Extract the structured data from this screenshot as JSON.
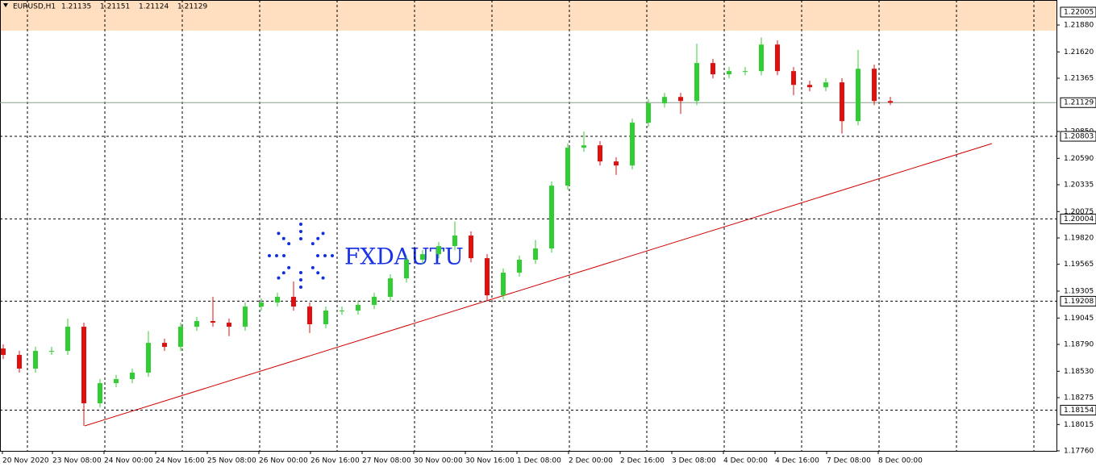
{
  "header": {
    "symbol": "EURUSD,H1",
    "quote": [
      "1.21135",
      "1.21151",
      "1.21124",
      "1.21129"
    ]
  },
  "watermark": "FXDAUTU",
  "chart_data": {
    "type": "candlestick",
    "bull_color": "#32cd32",
    "bear_color": "#e01010",
    "ylim": [
      1.17752,
      1.22122
    ],
    "yticks": [
      {
        "value": 1.2188,
        "label": "1.21880"
      },
      {
        "value": 1.2162,
        "label": "1.21620"
      },
      1.21365,
      {
        "value": 1.2085,
        "label": "1.20850"
      },
      {
        "value": 1.2059,
        "label": "1.20590"
      },
      1.20335,
      1.20075,
      {
        "value": 1.1982,
        "label": "1.19820"
      },
      1.19565,
      1.19305,
      1.19045,
      {
        "value": 1.1879,
        "label": "1.18790"
      },
      {
        "value": 1.1853,
        "label": "1.18530"
      },
      1.18275,
      1.18015,
      {
        "value": 1.1776,
        "label": "1.17760"
      }
    ],
    "levels": [
      1.22005,
      1.20803,
      1.20004,
      1.19208,
      1.18154
    ],
    "bid": 1.21129,
    "xlabels": [
      "20 Nov 2020",
      "23 Nov 08:00",
      "24 Nov 00:00",
      "24 Nov 16:00",
      "25 Nov 08:00",
      "26 Nov 00:00",
      "26 Nov 16:00",
      "27 Nov 08:00",
      "30 Nov 00:00",
      "30 Nov 16:00",
      "1 Dec 08:00",
      "2 Dec 00:00",
      "2 Dec 16:00",
      "3 Dec 08:00",
      "4 Dec 00:00",
      "4 Dec 16:00",
      "7 Dec 08:00",
      "8 Dec 00:00"
    ],
    "open": [
      1.1875,
      1.18688,
      1.18556,
      1.18727,
      1.18727,
      1.18961,
      1.1822,
      1.18415,
      1.18454,
      1.18517,
      1.18805,
      1.18766,
      1.18961,
      1.19016,
      1.19,
      1.18961,
      1.19156,
      1.19195,
      1.1925,
      1.19156,
      1.18985,
      1.19117,
      1.19117,
      1.19172,
      1.1925,
      1.19429,
      1.19609,
      1.19663,
      1.19741,
      1.19843,
      1.19624,
      1.19265,
      1.19484,
      1.19609,
      1.19718,
      1.20326,
      1.20693,
      1.20716,
      1.2056,
      1.20521,
      1.20935,
      1.21122,
      1.21184,
      1.21145,
      1.21512,
      1.21403,
      1.21434,
      1.21434,
      1.21691,
      1.21434,
      1.21301,
      1.21278,
      1.21325,
      1.2095,
      1.21457,
      1.21145
    ],
    "high": [
      1.1879,
      1.18728,
      1.18767,
      1.18767,
      1.1904,
      1.19001,
      1.18455,
      1.18494,
      1.18557,
      1.1892,
      1.18845,
      1.19001,
      1.19056,
      1.1925,
      1.1904,
      1.19196,
      1.19235,
      1.1929,
      1.194,
      1.19196,
      1.19157,
      1.19157,
      1.19212,
      1.1929,
      1.19469,
      1.19649,
      1.19703,
      1.19781,
      1.1998,
      1.19883,
      1.19664,
      1.19524,
      1.19649,
      1.198,
      1.20366,
      1.20733,
      1.2085,
      1.20756,
      1.206,
      1.20975,
      1.21162,
      1.21224,
      1.21224,
      1.217,
      1.21552,
      1.21474,
      1.21474,
      1.2176,
      1.21731,
      1.21474,
      1.21341,
      1.21365,
      1.21365,
      1.2164,
      1.21497,
      1.21185
    ],
    "low": [
      1.18648,
      1.18516,
      1.18516,
      1.18687,
      1.18687,
      1.18002,
      1.1818,
      1.18375,
      1.18414,
      1.18477,
      1.18726,
      1.18726,
      1.18921,
      1.1896,
      1.1887,
      1.18921,
      1.19116,
      1.19155,
      1.19116,
      1.189,
      1.18945,
      1.19077,
      1.19077,
      1.19132,
      1.1921,
      1.19389,
      1.19569,
      1.19623,
      1.19701,
      1.19584,
      1.19208,
      1.19225,
      1.19444,
      1.19569,
      1.19678,
      1.20286,
      1.20653,
      1.2052,
      1.2043,
      1.20481,
      1.20895,
      1.21082,
      1.2102,
      1.21105,
      1.21363,
      1.21363,
      1.21394,
      1.21394,
      1.21394,
      1.212,
      1.21238,
      1.21238,
      1.2083,
      1.2091,
      1.21105,
      1.21105
    ],
    "close": [
      1.18688,
      1.18556,
      1.18727,
      1.18727,
      1.18961,
      1.1822,
      1.18415,
      1.18454,
      1.18517,
      1.18805,
      1.18766,
      1.18961,
      1.19016,
      1.19,
      1.18961,
      1.19156,
      1.19195,
      1.1925,
      1.19156,
      1.18985,
      1.19117,
      1.19117,
      1.19172,
      1.1925,
      1.19429,
      1.19609,
      1.19663,
      1.19741,
      1.19843,
      1.19624,
      1.19265,
      1.19484,
      1.19609,
      1.19718,
      1.20326,
      1.20693,
      1.20716,
      1.2056,
      1.20521,
      1.20935,
      1.21122,
      1.21184,
      1.21145,
      1.21512,
      1.21403,
      1.21434,
      1.21434,
      1.21691,
      1.21434,
      1.21301,
      1.21278,
      1.21325,
      1.2095,
      1.21457,
      1.21145,
      1.21129
    ]
  }
}
